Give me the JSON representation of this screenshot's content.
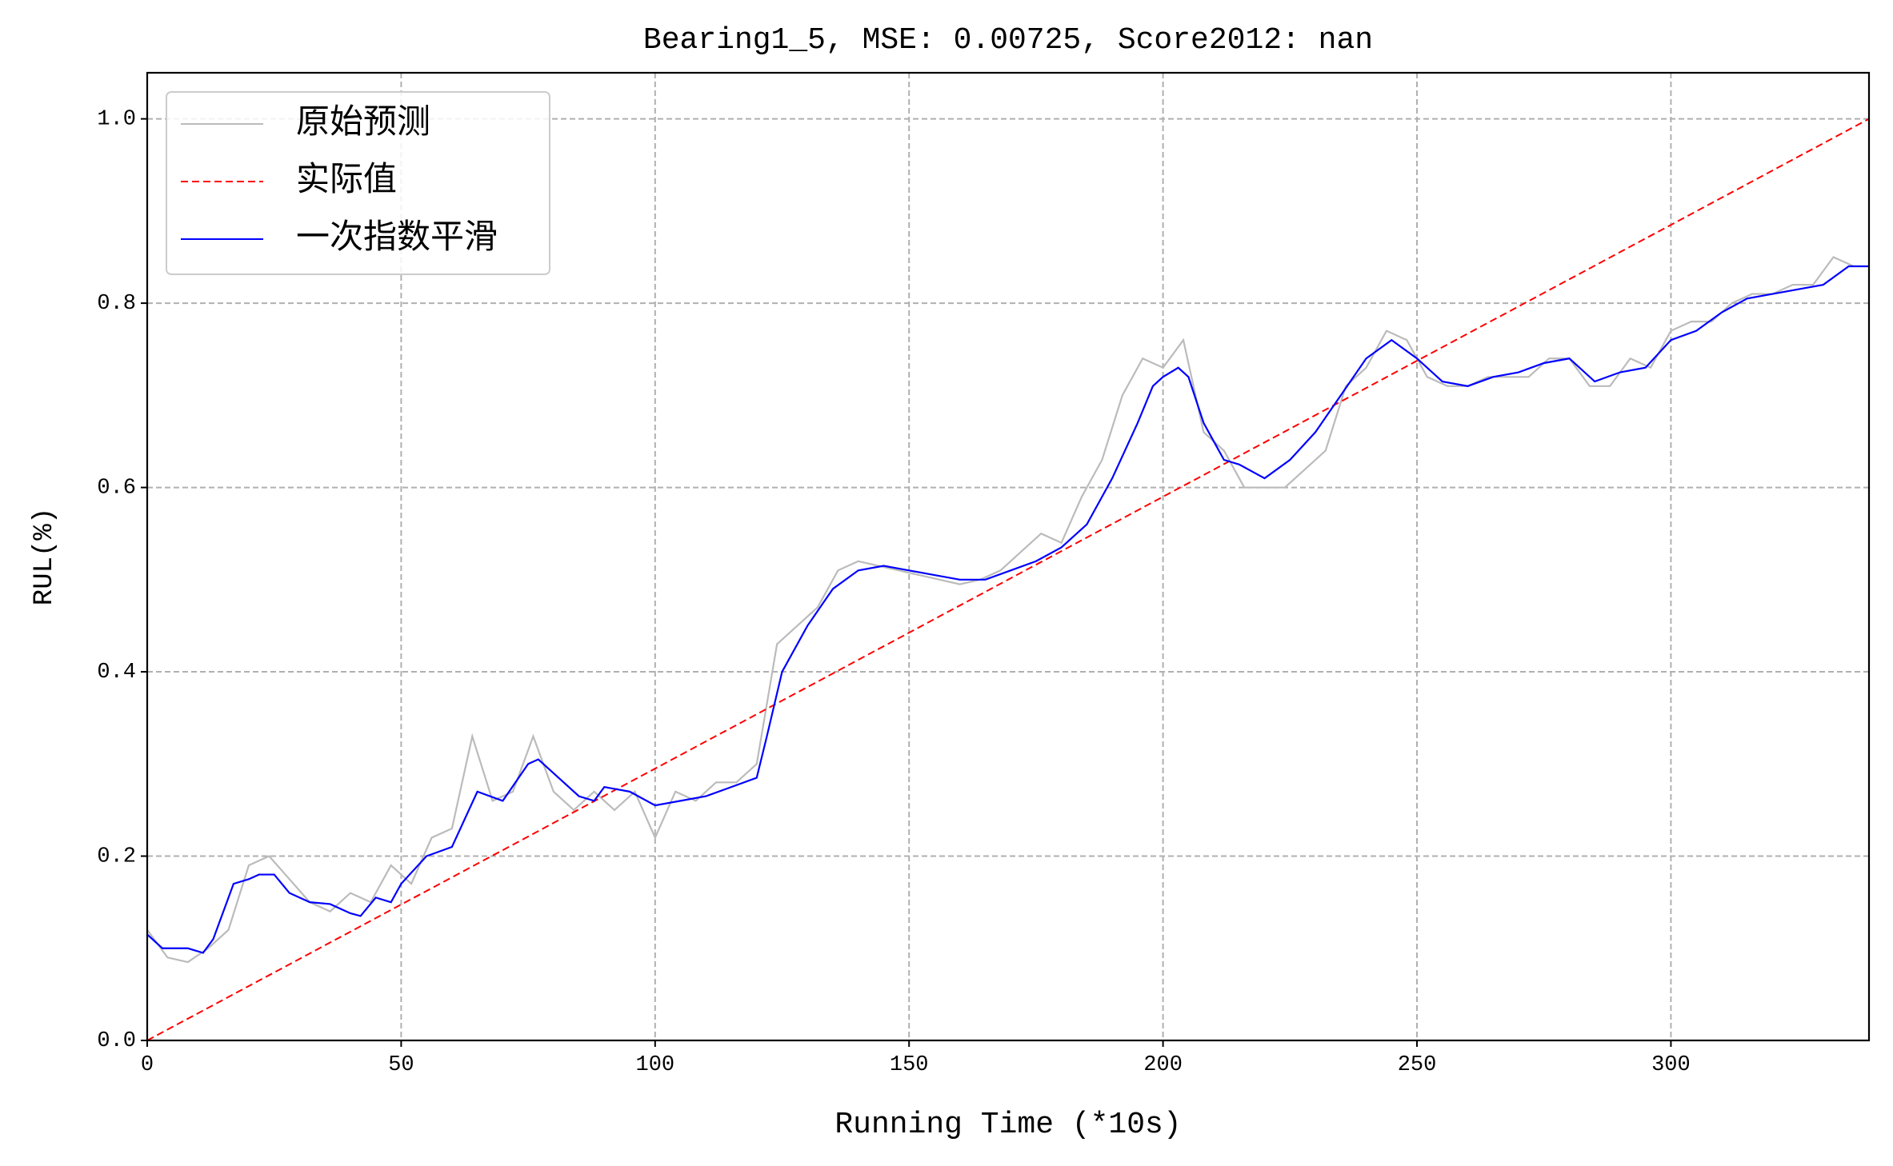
{
  "chart_data": {
    "type": "line",
    "title": "Bearing1_5, MSE: 0.00725, Score2012: nan",
    "x_label": "Running Time (*10s)",
    "y_label": "RUL(%)",
    "xlim": [
      0,
      339
    ],
    "ylim": [
      0,
      1.05
    ],
    "xticks": [
      0,
      50,
      100,
      150,
      200,
      250,
      300
    ],
    "yticks": [
      {
        "value": 0,
        "label": "0.0"
      },
      0.2,
      0.4,
      0.6,
      0.8,
      {
        "value": 1,
        "label": "1.0"
      }
    ],
    "grid": true,
    "legend": "upper left",
    "series": [
      {
        "name": "原始预测",
        "color": "#bbbbbb",
        "dash": "solid",
        "x": [
          0,
          4,
          8,
          12,
          16,
          20,
          24,
          28,
          32,
          36,
          40,
          44,
          48,
          52,
          56,
          60,
          64,
          68,
          72,
          76,
          80,
          84,
          88,
          92,
          96,
          100,
          104,
          108,
          112,
          116,
          120,
          124,
          128,
          132,
          136,
          140,
          144,
          148,
          152,
          156,
          160,
          164,
          168,
          172,
          176,
          180,
          184,
          188,
          192,
          196,
          200,
          204,
          208,
          212,
          216,
          220,
          224,
          228,
          232,
          236,
          240,
          244,
          248,
          252,
          256,
          260,
          264,
          268,
          272,
          276,
          280,
          284,
          288,
          292,
          296,
          300,
          304,
          308,
          312,
          316,
          320,
          324,
          328,
          332,
          336
        ],
        "values": [
          0.12,
          0.09,
          0.085,
          0.1,
          0.12,
          0.19,
          0.2,
          0.175,
          0.15,
          0.14,
          0.16,
          0.15,
          0.19,
          0.17,
          0.22,
          0.23,
          0.33,
          0.26,
          0.27,
          0.33,
          0.27,
          0.25,
          0.27,
          0.25,
          0.27,
          0.22,
          0.27,
          0.26,
          0.28,
          0.28,
          0.3,
          0.43,
          0.45,
          0.47,
          0.51,
          0.52,
          0.515,
          0.51,
          0.505,
          0.5,
          0.495,
          0.5,
          0.51,
          0.53,
          0.55,
          0.54,
          0.59,
          0.63,
          0.7,
          0.74,
          0.73,
          0.76,
          0.66,
          0.64,
          0.6,
          0.6,
          0.6,
          0.62,
          0.64,
          0.71,
          0.73,
          0.77,
          0.76,
          0.72,
          0.71,
          0.71,
          0.72,
          0.72,
          0.72,
          0.74,
          0.74,
          0.71,
          0.71,
          0.74,
          0.73,
          0.77,
          0.78,
          0.78,
          0.8,
          0.81,
          0.81,
          0.82,
          0.82,
          0.85,
          0.84
        ]
      },
      {
        "name": "实际值",
        "color": "#ff0000",
        "dash": "dashed",
        "x": [
          0,
          339
        ],
        "values": [
          0,
          1
        ]
      },
      {
        "name": "一次指数平滑",
        "color": "#0000ff",
        "dash": "solid",
        "x": [
          0,
          3,
          8,
          11,
          13,
          17,
          20,
          22,
          25,
          28,
          32,
          36,
          40,
          42,
          45,
          48,
          50,
          55,
          60,
          65,
          70,
          75,
          77,
          80,
          85,
          88,
          90,
          95,
          100,
          105,
          110,
          115,
          120,
          122,
          125,
          130,
          135,
          140,
          145,
          150,
          155,
          160,
          165,
          170,
          175,
          180,
          185,
          190,
          195,
          198,
          200,
          203,
          205,
          208,
          212,
          215,
          220,
          225,
          230,
          235,
          240,
          245,
          250,
          255,
          260,
          265,
          270,
          275,
          280,
          285,
          290,
          295,
          300,
          305,
          310,
          315,
          320,
          325,
          330,
          335,
          339
        ],
        "values": [
          0.115,
          0.1,
          0.1,
          0.095,
          0.11,
          0.17,
          0.175,
          0.18,
          0.18,
          0.16,
          0.15,
          0.148,
          0.138,
          0.135,
          0.155,
          0.15,
          0.17,
          0.2,
          0.21,
          0.27,
          0.26,
          0.3,
          0.305,
          0.29,
          0.265,
          0.26,
          0.275,
          0.27,
          0.255,
          0.26,
          0.265,
          0.275,
          0.285,
          0.33,
          0.4,
          0.45,
          0.49,
          0.51,
          0.515,
          0.51,
          0.505,
          0.5,
          0.5,
          0.51,
          0.52,
          0.535,
          0.56,
          0.61,
          0.67,
          0.71,
          0.72,
          0.73,
          0.72,
          0.67,
          0.63,
          0.625,
          0.61,
          0.63,
          0.66,
          0.7,
          0.74,
          0.76,
          0.74,
          0.715,
          0.71,
          0.72,
          0.725,
          0.735,
          0.74,
          0.715,
          0.725,
          0.73,
          0.76,
          0.77,
          0.79,
          0.805,
          0.81,
          0.815,
          0.82,
          0.84,
          0.84
        ]
      }
    ]
  }
}
